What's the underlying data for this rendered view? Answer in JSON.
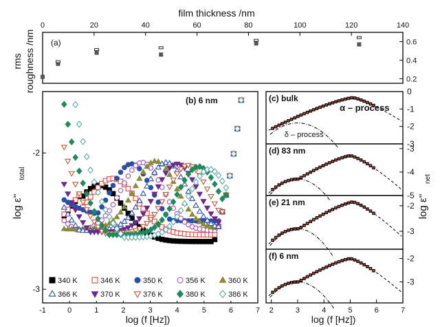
{
  "colors": {
    "red": "#e8433a",
    "blue": "#2a4fa8",
    "purple": "#a64fb8",
    "violet": "#6b2a8a",
    "brown": "#c1563a",
    "green": "#1f8a5a",
    "olive": "#8a8a3a",
    "teal": "#5aa8a8",
    "black": "#000000"
  },
  "chart_data": [
    {
      "id": "a",
      "type": "scatter",
      "panel_label": "(a)",
      "xlabel": "film thickness /nm",
      "ylabel_line1": "rms",
      "ylabel_line2": "roughness /nm",
      "xlim": [
        0,
        140
      ],
      "ylim": [
        0.15,
        0.7
      ],
      "xticks": [
        "0",
        "20",
        "40",
        "60",
        "80",
        "100",
        "120",
        "140"
      ],
      "yticks": [
        "0.2",
        "0.4",
        "0.6"
      ],
      "points": [
        {
          "x": 0,
          "y": 0.22,
          "s": "filled"
        },
        {
          "x": 6,
          "y": 0.36,
          "s": "filled"
        },
        {
          "x": 6,
          "y": 0.38,
          "s": "open"
        },
        {
          "x": 21,
          "y": 0.48,
          "s": "filled"
        },
        {
          "x": 21,
          "y": 0.51,
          "s": "open"
        },
        {
          "x": 46,
          "y": 0.46,
          "s": "filled"
        },
        {
          "x": 46,
          "y": 0.53,
          "s": "open"
        },
        {
          "x": 83,
          "y": 0.58,
          "s": "filled"
        },
        {
          "x": 83,
          "y": 0.61,
          "s": "open"
        },
        {
          "x": 123,
          "y": 0.57,
          "s": "filled"
        },
        {
          "x": 123,
          "y": 0.64,
          "s": "open"
        }
      ]
    },
    {
      "id": "b",
      "type": "scatter",
      "panel_label": "(b) 6 nm",
      "xlabel": "log (f [Hz])",
      "ylabel": "log ε''",
      "ylabel_sub": "total",
      "xlim": [
        -1,
        7
      ],
      "ylim": [
        -3.1,
        -1.55
      ],
      "xticks": [
        "-1",
        "0",
        "1",
        "2",
        "3",
        "4",
        "5",
        "6",
        "7"
      ],
      "yticks": [
        "-2",
        "-3"
      ],
      "legend": [
        {
          "label": "340 K",
          "marker": "square",
          "fill": true,
          "color": "black"
        },
        {
          "label": "346 K",
          "marker": "square",
          "fill": false,
          "color": "red"
        },
        {
          "label": "350 K",
          "marker": "circle",
          "fill": true,
          "color": "blue"
        },
        {
          "label": "356 K",
          "marker": "circle",
          "fill": false,
          "color": "purple"
        },
        {
          "label": "360 K",
          "marker": "triup",
          "fill": true,
          "color": "olive"
        },
        {
          "label": "366 K",
          "marker": "triup",
          "fill": false,
          "color": "blue"
        },
        {
          "label": "370 K",
          "marker": "tridown",
          "fill": true,
          "color": "violet"
        },
        {
          "label": "376 K",
          "marker": "tridown",
          "fill": false,
          "color": "brown"
        },
        {
          "label": "380 K",
          "marker": "diamond",
          "fill": true,
          "color": "green"
        },
        {
          "label": "386 K",
          "marker": "diamond",
          "fill": false,
          "color": "teal"
        }
      ],
      "series": [
        {
          "T": "340 K",
          "peak_x": 1.1,
          "peak_y": -2.06,
          "min_x": 4.5,
          "min_y": -2.65
        },
        {
          "T": "346 K",
          "peak_x": 1.6,
          "peak_y": -2.05,
          "min_x": 4.7,
          "min_y": -2.6
        },
        {
          "T": "350 K",
          "peak_x": 2.3,
          "peak_y": -2.08,
          "min_x": 0.6,
          "min_y": -2.5
        },
        {
          "T": "356 K",
          "peak_x": 2.7,
          "peak_y": -2.07,
          "min_x": 0.9,
          "min_y": -2.7
        },
        {
          "T": "360 K",
          "peak_x": 3.2,
          "peak_y": -2.06,
          "min_x": 1.3,
          "min_y": -2.85
        },
        {
          "T": "366 K",
          "peak_x": 3.6,
          "peak_y": -2.07,
          "min_x": 1.7,
          "min_y": -2.82
        },
        {
          "T": "370 K",
          "peak_x": 4.0,
          "peak_y": -2.08,
          "min_x": 2.1,
          "min_y": -2.83
        },
        {
          "T": "376 K",
          "peak_x": 4.4,
          "peak_y": -2.09,
          "min_x": 2.5,
          "min_y": -2.82
        },
        {
          "T": "380 K",
          "peak_x": 4.8,
          "peak_y": -2.1,
          "min_x": 2.9,
          "min_y": -2.88
        },
        {
          "T": "386 K",
          "peak_x": 5.2,
          "peak_y": -2.12,
          "min_x": 3.3,
          "min_y": -2.86
        }
      ]
    },
    {
      "id": "c",
      "type": "line",
      "panel_label": "(c) bulk",
      "annotations": [
        "α – process",
        "δ – process"
      ],
      "xlim": [
        1.8,
        7
      ],
      "ylim": [
        -3,
        0
      ],
      "yticks": [
        "0",
        "-1",
        "-2",
        "-3"
      ],
      "alpha_peak_x": 5.1,
      "alpha_peak_y": -0.35,
      "delta_peak_x": 3.0,
      "delta_peak_y": -1.8
    },
    {
      "id": "d",
      "type": "line",
      "panel_label": "(d) 83 nm",
      "xlim": [
        1.8,
        7
      ],
      "ylim": [
        -5,
        -2.8
      ],
      "yticks": [
        "-3",
        "-4",
        "-5"
      ],
      "alpha_peak_x": 5.0,
      "alpha_peak_y": -3.3,
      "delta_peak_x": 3.0,
      "delta_peak_y": -4.3
    },
    {
      "id": "e",
      "type": "line",
      "panel_label": "(e) 21 nm",
      "xlim": [
        1.8,
        7
      ],
      "ylim": [
        -3.7,
        -1.6
      ],
      "yticks": [
        "-2",
        "-3"
      ],
      "alpha_peak_x": 5.1,
      "alpha_peak_y": -1.85,
      "delta_peak_x": 3.0,
      "delta_peak_y": -2.9
    },
    {
      "id": "f",
      "type": "line",
      "panel_label": "(f) 6 nm",
      "xlim": [
        1.8,
        7
      ],
      "ylim": [
        -3.9,
        -1.6
      ],
      "yticks": [
        "-2",
        "-3"
      ],
      "alpha_peak_x": 5.0,
      "alpha_peak_y": -2.0,
      "delta_peak_x": 3.0,
      "delta_peak_y": -3.0,
      "xlabel": "log (f [Hz])",
      "xticks": [
        "2",
        "3",
        "4",
        "5",
        "6",
        "7"
      ]
    }
  ],
  "right_ylabel": "log ε''",
  "right_ylabel_sub": "net"
}
